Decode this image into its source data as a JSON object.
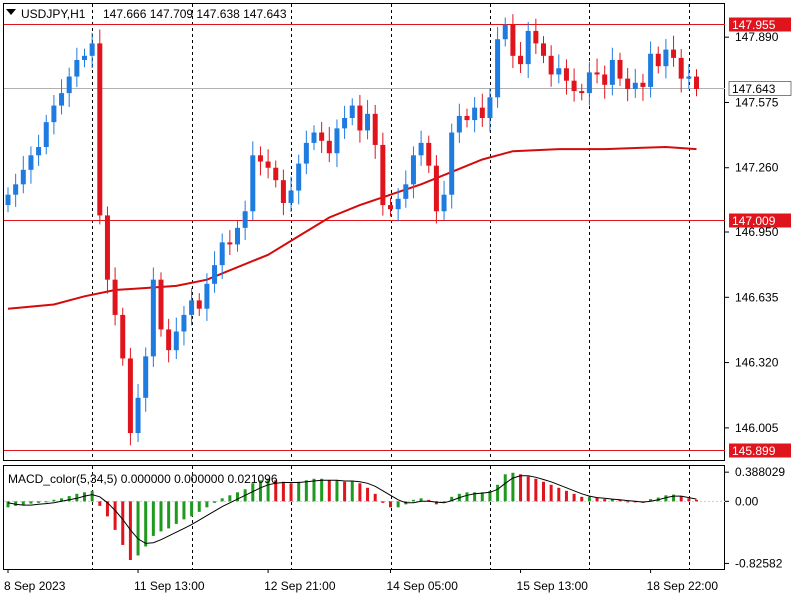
{
  "window": {
    "symbol_label": "USDJPY,H1",
    "ohlc_label": "147.666 147.709 147.638 147.643"
  },
  "indicator": {
    "label": "MACD_color(5,34,5) 0.000000 0.000000 0.021096"
  },
  "colors": {
    "bull": "#1e7be0",
    "bear": "#e0141c",
    "ma": "#d40b0b",
    "hline": "#e0141c",
    "macd_pos": "#1f9a1f",
    "macd_neg": "#e0141c",
    "grid": "#000000"
  },
  "chart_data": {
    "type": "candlestick",
    "symbol": "USDJPY",
    "timeframe": "H1",
    "current_price": "147.643",
    "price_axis": {
      "ylim": [
        145.85,
        148.05
      ],
      "ticks": [
        "147.890",
        "147.575",
        "147.260",
        "146.950",
        "146.635",
        "146.320",
        "146.005"
      ]
    },
    "time_axis": {
      "labels": [
        "8 Sep 2023",
        "11 Sep 13:00",
        "12 Sep 21:00",
        "14 Sep 05:00",
        "15 Sep 13:00",
        "18 Sep 22:00"
      ],
      "grid_positions_bars": [
        11,
        24,
        37,
        50,
        63,
        76,
        89
      ]
    },
    "horizontal_lines": [
      {
        "price": 147.955,
        "label": "147.955"
      },
      {
        "price": 147.009,
        "label": "147.009"
      },
      {
        "price": 145.899,
        "label": "145.899"
      }
    ],
    "candles_close": [
      147.13,
      147.18,
      147.25,
      147.32,
      147.36,
      147.48,
      147.56,
      147.62,
      147.7,
      147.78,
      147.8,
      147.86,
      147.03,
      146.72,
      146.55,
      146.34,
      145.98,
      146.15,
      146.35,
      146.72,
      146.48,
      146.38,
      146.47,
      146.55,
      146.62,
      146.58,
      146.7,
      146.79,
      146.9,
      146.89,
      146.97,
      147.05,
      147.32,
      147.29,
      147.26,
      147.2,
      147.09,
      147.15,
      147.28,
      147.38,
      147.43,
      147.39,
      147.33,
      147.45,
      147.5,
      147.56,
      147.44,
      147.52,
      147.37,
      147.08,
      147.06,
      147.11,
      147.18,
      147.32,
      147.38,
      147.27,
      147.05,
      147.13,
      147.43,
      147.51,
      147.49,
      147.55,
      147.5,
      147.6,
      147.88,
      147.95,
      147.8,
      147.76,
      147.92,
      147.86,
      147.8,
      147.71,
      147.74,
      147.68,
      147.63,
      147.62,
      147.72,
      147.71,
      147.66,
      147.78,
      147.69,
      147.64,
      147.67,
      147.65,
      147.81,
      147.75,
      147.83,
      147.79,
      147.69,
      147.7,
      147.64
    ],
    "moving_average": {
      "points": [
        [
          0,
          146.58
        ],
        [
          6,
          146.6
        ],
        [
          10,
          146.64
        ],
        [
          14,
          146.67
        ],
        [
          18,
          146.68
        ],
        [
          22,
          146.69
        ],
        [
          26,
          146.72
        ],
        [
          30,
          146.78
        ],
        [
          34,
          146.84
        ],
        [
          38,
          146.93
        ],
        [
          42,
          147.02
        ],
        [
          46,
          147.08
        ],
        [
          50,
          147.13
        ],
        [
          54,
          147.18
        ],
        [
          58,
          147.24
        ],
        [
          62,
          147.3
        ],
        [
          66,
          147.34
        ],
        [
          72,
          147.35
        ],
        [
          78,
          147.35
        ],
        [
          86,
          147.36
        ],
        [
          90,
          147.35
        ]
      ]
    },
    "macd": {
      "ylim": [
        -0.9,
        0.47
      ],
      "ticks": [
        "0.388029",
        "0.00",
        "-0.82582"
      ],
      "histogram": [
        -0.08,
        -0.06,
        -0.05,
        -0.03,
        -0.02,
        -0.01,
        0.02,
        0.04,
        0.07,
        0.1,
        0.12,
        0.14,
        -0.06,
        -0.2,
        -0.38,
        -0.58,
        -0.78,
        -0.72,
        -0.6,
        -0.46,
        -0.4,
        -0.36,
        -0.3,
        -0.24,
        -0.2,
        -0.14,
        -0.08,
        -0.02,
        0.04,
        0.08,
        0.12,
        0.16,
        0.24,
        0.28,
        0.3,
        0.28,
        0.26,
        0.24,
        0.26,
        0.28,
        0.3,
        0.3,
        0.28,
        0.28,
        0.26,
        0.27,
        0.24,
        0.18,
        0.1,
        -0.02,
        -0.08,
        -0.08,
        -0.04,
        0.02,
        0.04,
        0.02,
        -0.04,
        -0.02,
        0.06,
        0.1,
        0.12,
        0.12,
        0.12,
        0.14,
        0.22,
        0.36,
        0.38,
        0.36,
        0.33,
        0.3,
        0.26,
        0.22,
        0.18,
        0.14,
        0.1,
        0.06,
        0.06,
        0.05,
        0.03,
        0.03,
        0.02,
        0.0,
        -0.01,
        -0.02,
        0.03,
        0.05,
        0.08,
        0.09,
        0.07,
        0.04,
        0.02
      ],
      "signal": [
        -0.02,
        -0.04,
        -0.05,
        -0.05,
        -0.04,
        -0.03,
        -0.02,
        0.0,
        0.02,
        0.04,
        0.07,
        0.09,
        0.06,
        -0.02,
        -0.12,
        -0.24,
        -0.38,
        -0.5,
        -0.56,
        -0.55,
        -0.51,
        -0.46,
        -0.41,
        -0.36,
        -0.31,
        -0.25,
        -0.19,
        -0.13,
        -0.07,
        -0.02,
        0.03,
        0.08,
        0.13,
        0.18,
        0.22,
        0.24,
        0.25,
        0.25,
        0.25,
        0.26,
        0.27,
        0.28,
        0.28,
        0.28,
        0.27,
        0.27,
        0.26,
        0.24,
        0.2,
        0.14,
        0.08,
        0.02,
        -0.02,
        -0.02,
        0.0,
        0.0,
        -0.01,
        -0.02,
        0.01,
        0.05,
        0.08,
        0.1,
        0.11,
        0.12,
        0.16,
        0.24,
        0.31,
        0.34,
        0.34,
        0.32,
        0.29,
        0.26,
        0.22,
        0.18,
        0.14,
        0.1,
        0.07,
        0.05,
        0.04,
        0.03,
        0.02,
        0.01,
        0.0,
        -0.01,
        0.0,
        0.02,
        0.05,
        0.07,
        0.07,
        0.05,
        0.03
      ]
    }
  }
}
